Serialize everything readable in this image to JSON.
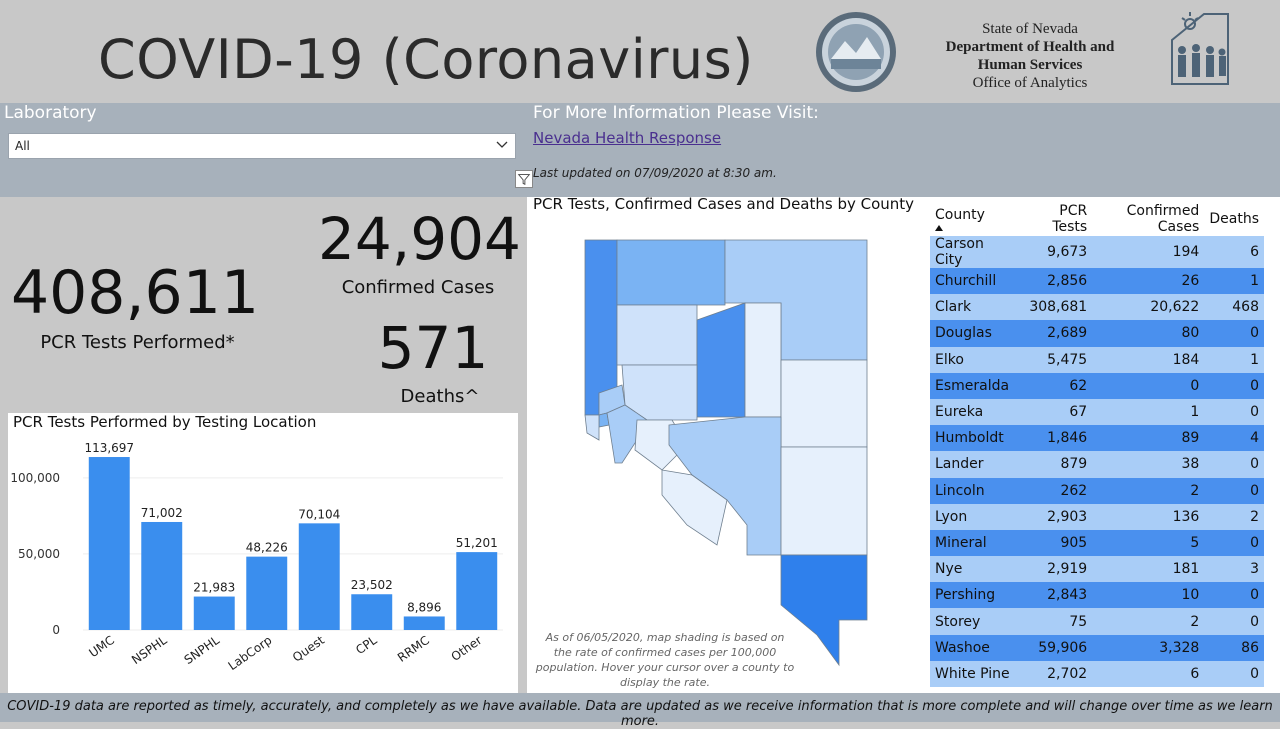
{
  "header": {
    "title": "COVID-19 (Coronavirus)",
    "agency_line1": "State of Nevada",
    "agency_line2": "Department of Health and",
    "agency_line3": "Human Services",
    "agency_line4": "Office of Analytics",
    "seal_icon": "nevada-state-seal",
    "logo_icon": "dhhs-logo"
  },
  "filters": {
    "lab_label": "Laboratory",
    "lab_selected": "All",
    "info_label": "For More Information Please Visit:",
    "info_link": "Nevada Health Response",
    "updated": "Last updated on 07/09/2020 at 8:30 am."
  },
  "kpis": {
    "tests_value": "408,611",
    "tests_label": "PCR Tests Performed*",
    "cases_value": "24,904",
    "cases_label": "Confirmed Cases",
    "deaths_value": "571",
    "deaths_label": "Deaths^"
  },
  "bar_title": "PCR Tests Performed by Testing Location",
  "map": {
    "title": "PCR Tests, Confirmed Cases and Deaths by County",
    "note": "As of 06/05/2020, map shading is based on the rate of confirmed cases per 100,000 population. Hover your cursor over a county to display the rate."
  },
  "table": {
    "headers": [
      "County",
      "PCR Tests",
      "Confirmed Cases",
      "Deaths"
    ],
    "rows": [
      [
        "Carson City",
        "9,673",
        "194",
        "6"
      ],
      [
        "Churchill",
        "2,856",
        "26",
        "1"
      ],
      [
        "Clark",
        "308,681",
        "20,622",
        "468"
      ],
      [
        "Douglas",
        "2,689",
        "80",
        "0"
      ],
      [
        "Elko",
        "5,475",
        "184",
        "1"
      ],
      [
        "Esmeralda",
        "62",
        "0",
        "0"
      ],
      [
        "Eureka",
        "67",
        "1",
        "0"
      ],
      [
        "Humboldt",
        "1,846",
        "89",
        "4"
      ],
      [
        "Lander",
        "879",
        "38",
        "0"
      ],
      [
        "Lincoln",
        "262",
        "2",
        "0"
      ],
      [
        "Lyon",
        "2,903",
        "136",
        "2"
      ],
      [
        "Mineral",
        "905",
        "5",
        "0"
      ],
      [
        "Nye",
        "2,919",
        "181",
        "3"
      ],
      [
        "Pershing",
        "2,843",
        "10",
        "0"
      ],
      [
        "Storey",
        "75",
        "2",
        "0"
      ],
      [
        "Washoe",
        "59,906",
        "3,328",
        "86"
      ],
      [
        "White Pine",
        "2,702",
        "6",
        "0"
      ]
    ]
  },
  "footer": "COVID-19 data are reported as timely, accurately, and completely as we have available.  Data are updated as we receive information that is more complete and will change over time as we learn more.",
  "colors": {
    "bar": "#3a8eee",
    "row_light": "#a9cdf7",
    "row_dark": "#4a90ee",
    "filterbar": "#a7b1bb",
    "link": "#4a2f8f"
  },
  "chart_data": {
    "type": "bar",
    "title": "PCR Tests Performed by Testing Location",
    "categories": [
      "UMC",
      "NSPHL",
      "SNPHL",
      "LabCorp",
      "Quest",
      "CPL",
      "RRMC",
      "Other"
    ],
    "values": [
      113697,
      71002,
      21983,
      48226,
      70104,
      23502,
      8896,
      51201
    ],
    "value_labels": [
      "113,697",
      "71,002",
      "21,983",
      "48,226",
      "70,104",
      "23,502",
      "8,896",
      "51,201"
    ],
    "yticks": [
      "0",
      "50,000",
      "100,000"
    ],
    "ylim": [
      0,
      117000
    ],
    "grid": true
  }
}
